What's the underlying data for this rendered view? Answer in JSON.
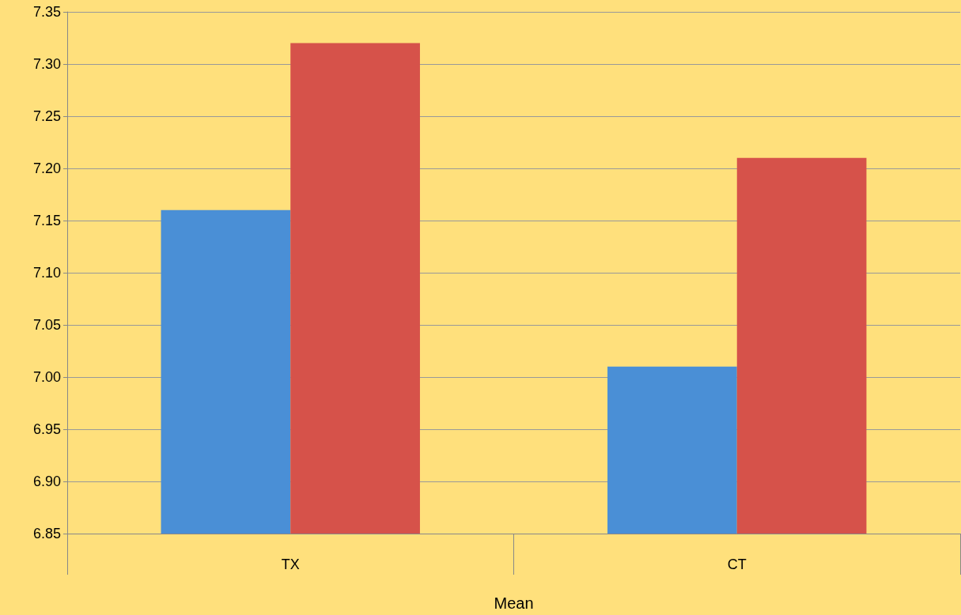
{
  "chart_data": {
    "type": "bar",
    "xlabel": "Mean",
    "categories": [
      "TX",
      "CT"
    ],
    "series": [
      {
        "color": "#4a8fd6",
        "values": [
          7.16,
          7.01
        ]
      },
      {
        "color": "#d6524a",
        "values": [
          7.32,
          7.21
        ]
      }
    ],
    "ylim": [
      6.85,
      7.35
    ],
    "yticks": [
      {
        "value": 6.85,
        "label": "6.85"
      },
      {
        "value": 6.9,
        "label": "6.90"
      },
      {
        "value": 6.95,
        "label": "6.95"
      },
      {
        "value": 7.0,
        "label": "7.00"
      },
      {
        "value": 7.05,
        "label": "7.05"
      },
      {
        "value": 7.1,
        "label": "7.10"
      },
      {
        "value": 7.15,
        "label": "7.15"
      },
      {
        "value": 7.2,
        "label": "7.20"
      },
      {
        "value": 7.25,
        "label": "7.25"
      },
      {
        "value": 7.3,
        "label": "7.30"
      },
      {
        "value": 7.35,
        "label": "7.35"
      }
    ],
    "grid": true
  }
}
